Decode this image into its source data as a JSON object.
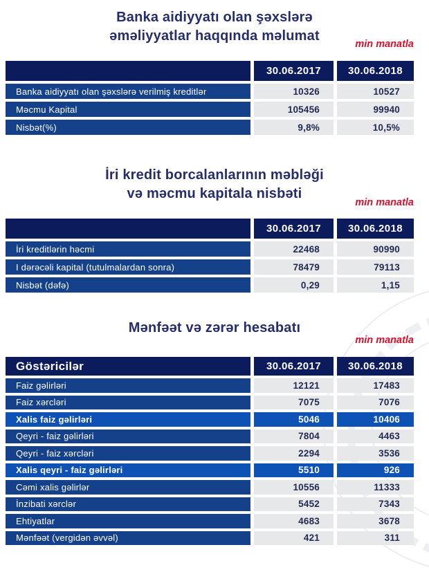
{
  "colors": {
    "header_navy": "#0b1b5c",
    "row_blue": "#15408a",
    "highlight_blue": "#0f52b5",
    "value_bg": "#e7e8ea",
    "value_text": "#232a52",
    "title_text": "#262d6b",
    "unit_red": "#d8112d"
  },
  "sections": [
    {
      "title_line1": "Banka aidiyyatı olan şəxslərə",
      "title_line2": "əməliyyatlar haqqında məlumat",
      "unit_note": "min manatla",
      "columns": [
        "",
        "30.06.2017",
        "30.06.2018"
      ],
      "rows": [
        {
          "label": "Banka aidiyyatı olan şəxslərə verilmiş kreditlər",
          "v2017": "10326",
          "v2018": "10527"
        },
        {
          "label": "Məcmu Kapital",
          "v2017": "105456",
          "v2018": "99940"
        },
        {
          "label": "Nisbət(%)",
          "v2017": "9,8%",
          "v2018": "10,5%"
        }
      ]
    },
    {
      "title_line1": "İri kredit borcalanlarının məbləği",
      "title_line2": "və məcmu kapitala nisbəti",
      "unit_note": "min manatla",
      "columns": [
        "",
        "30.06.2017",
        "30.06.2018"
      ],
      "rows": [
        {
          "label": "İri kreditlərin həcmi",
          "v2017": "22468",
          "v2018": "90990"
        },
        {
          "label": "I dərəcəli kapital (tutulmalardan sonra)",
          "v2017": "78479",
          "v2018": "79113"
        },
        {
          "label": "Nisbət (dəfə)",
          "v2017": "0,29",
          "v2018": "1,15"
        }
      ]
    },
    {
      "title_line1": "Mənfəət və zərər hesabatı",
      "title_line2": "",
      "unit_note": "min manatla",
      "columns": [
        "Göstəricilər",
        "30.06.2017",
        "30.06.2018"
      ],
      "rows": [
        {
          "label": "Faiz gəlirləri",
          "v2017": "12121",
          "v2018": "17483"
        },
        {
          "label": "Faiz xərcləri",
          "v2017": "7075",
          "v2018": "7076"
        },
        {
          "label": "Xalis faiz gəlirləri",
          "v2017": "5046",
          "v2018": "10406",
          "highlight": true
        },
        {
          "label": "Qeyri - faiz gəlirləri",
          "v2017": "7804",
          "v2018": "4463"
        },
        {
          "label": "Qeyri - faiz xərcləri",
          "v2017": "2294",
          "v2018": "3536"
        },
        {
          "label": "Xalis qeyri - faiz gəlirləri",
          "v2017": "5510",
          "v2018": "926",
          "highlight": true
        },
        {
          "label": "Cəmi xalis gəlirlər",
          "v2017": "10556",
          "v2018": "11333"
        },
        {
          "label": "İnzibati xərclər",
          "v2017": "5452",
          "v2018": "7343"
        },
        {
          "label": "Ehtiyatlar",
          "v2017": "4683",
          "v2018": "3678"
        },
        {
          "label": "Mənfəət (vergidən əvvəl)",
          "v2017": "421",
          "v2018": "311"
        }
      ]
    }
  ]
}
